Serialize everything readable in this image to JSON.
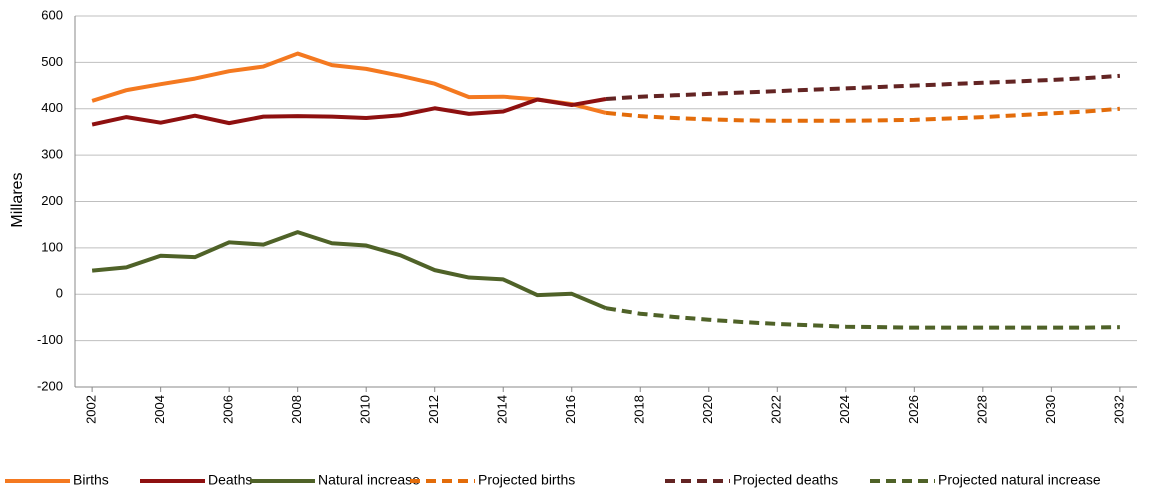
{
  "chart_data": {
    "type": "line",
    "y_label": "Millares",
    "x": [
      2002,
      2003,
      2004,
      2005,
      2006,
      2007,
      2008,
      2009,
      2010,
      2011,
      2012,
      2013,
      2014,
      2015,
      2016,
      2017,
      2018,
      2019,
      2020,
      2021,
      2022,
      2023,
      2024,
      2025,
      2026,
      2027,
      2028,
      2029,
      2030,
      2031,
      2032
    ],
    "xlim": [
      2001.5,
      2032.5
    ],
    "xticks": [
      2002,
      2004,
      2006,
      2008,
      2010,
      2012,
      2014,
      2016,
      2018,
      2020,
      2022,
      2024,
      2026,
      2028,
      2030,
      2032
    ],
    "ylim": [
      -200,
      600
    ],
    "yticks": [
      -200,
      -100,
      0,
      100,
      200,
      300,
      400,
      500,
      600
    ],
    "grid": true,
    "legend": "bottom",
    "series": [
      {
        "name": "Births",
        "color": "#f47920",
        "dashed": false,
        "values": [
          417,
          440,
          453,
          465,
          481,
          491,
          519,
          494,
          486,
          471,
          454,
          425,
          426,
          420,
          410,
          391,
          null,
          null,
          null,
          null,
          null,
          null,
          null,
          null,
          null,
          null,
          null,
          null,
          null,
          null,
          null
        ]
      },
      {
        "name": "Deaths",
        "color": "#8e1010",
        "dashed": false,
        "values": [
          366,
          382,
          370,
          385,
          369,
          383,
          384,
          383,
          380,
          386,
          401,
          389,
          394,
          420,
          408,
          421,
          null,
          null,
          null,
          null,
          null,
          null,
          null,
          null,
          null,
          null,
          null,
          null,
          null,
          null,
          null
        ]
      },
      {
        "name": "Natural increase",
        "color": "#4f6228",
        "dashed": false,
        "values": [
          51,
          58,
          83,
          80,
          112,
          107,
          134,
          110,
          105,
          84,
          52,
          36,
          32,
          -2,
          1,
          -30,
          null,
          null,
          null,
          null,
          null,
          null,
          null,
          null,
          null,
          null,
          null,
          null,
          null,
          null,
          null
        ]
      },
      {
        "name": "Projected births",
        "color": "#e36c0a",
        "dashed": true,
        "values": [
          null,
          null,
          null,
          null,
          null,
          null,
          null,
          null,
          null,
          null,
          null,
          null,
          null,
          null,
          null,
          391,
          384,
          380,
          377,
          375,
          374,
          374,
          374,
          375,
          376,
          379,
          382,
          386,
          390,
          394,
          400
        ]
      },
      {
        "name": "Projected deaths",
        "color": "#632423",
        "dashed": true,
        "values": [
          null,
          null,
          null,
          null,
          null,
          null,
          null,
          null,
          null,
          null,
          null,
          null,
          null,
          null,
          null,
          421,
          426,
          429,
          432,
          435,
          438,
          441,
          444,
          447,
          450,
          453,
          456,
          459,
          462,
          466,
          471
        ]
      },
      {
        "name": "Projected natural increase",
        "color": "#4f6228",
        "dashed": true,
        "values": [
          null,
          null,
          null,
          null,
          null,
          null,
          null,
          null,
          null,
          null,
          null,
          null,
          null,
          null,
          null,
          -30,
          -42,
          -49,
          -55,
          -60,
          -64,
          -67,
          -70,
          -71,
          -72,
          -72,
          -72,
          -72,
          -72,
          -72,
          -71
        ]
      }
    ]
  }
}
